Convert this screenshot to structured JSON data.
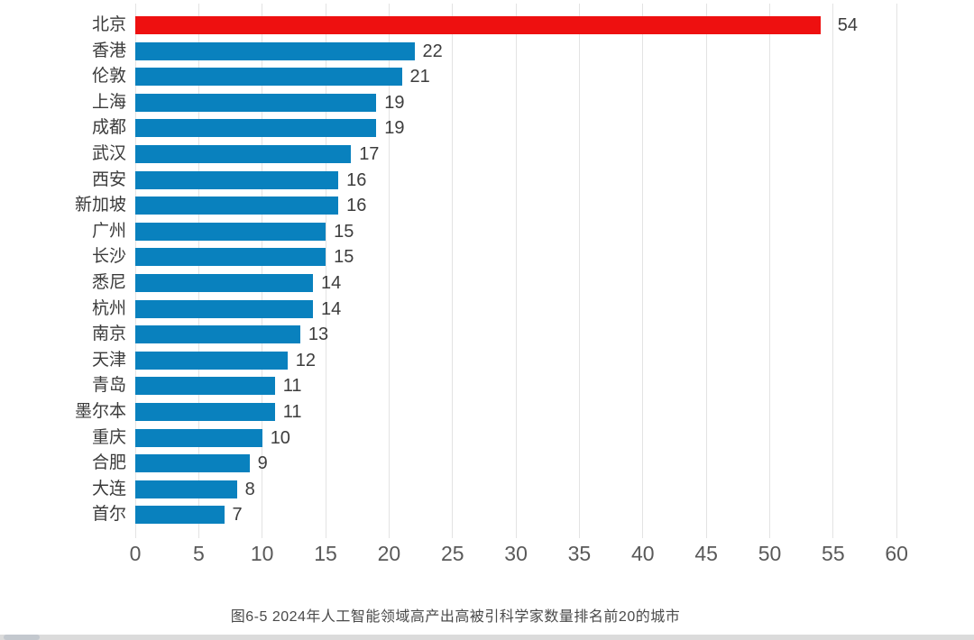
{
  "chart_data": {
    "type": "bar",
    "orientation": "horizontal",
    "title": "图6-5 2024年人工智能领域高产出高被引科学家数量排名前20的城市",
    "categories": [
      "北京",
      "香港",
      "伦敦",
      "上海",
      "成都",
      "武汉",
      "西安",
      "新加坡",
      "广州",
      "长沙",
      "悉尼",
      "杭州",
      "南京",
      "天津",
      "青岛",
      "墨尔本",
      "重庆",
      "合肥",
      "大连",
      "首尔"
    ],
    "values": [
      54,
      22,
      21,
      19,
      19,
      17,
      16,
      16,
      15,
      15,
      14,
      14,
      13,
      12,
      11,
      11,
      10,
      9,
      8,
      7
    ],
    "highlight_index": 0,
    "x_ticks": [
      0,
      5,
      10,
      15,
      20,
      25,
      30,
      35,
      40,
      45,
      50,
      55,
      60
    ],
    "xlim": [
      0,
      60
    ],
    "grid": true,
    "legend": false,
    "value_labels": true,
    "colors": {
      "bar": "#0981be",
      "highlight": "#ee1010",
      "grid": "#e3e3e3",
      "axis_text": "#595959",
      "category_text": "#3b3b3b",
      "value_text": "#3d3d3d",
      "caption_text": "#4a4a4a",
      "background": "#ffffff"
    }
  }
}
